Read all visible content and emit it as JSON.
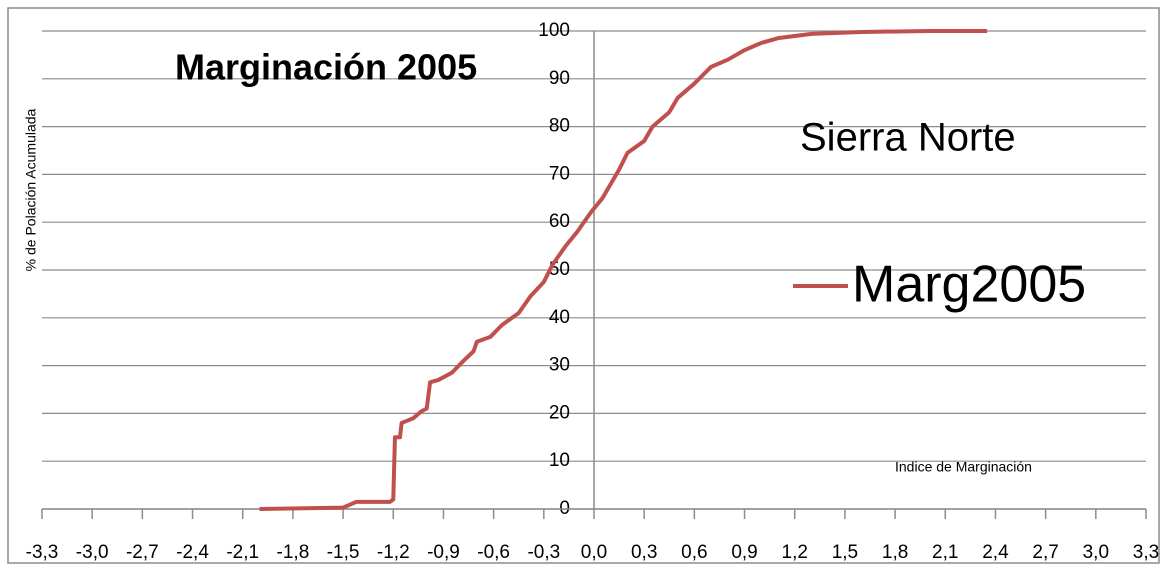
{
  "chart_data": {
    "type": "line",
    "title": "Marginación 2005",
    "annotation": "Sierra Norte",
    "x_label": "Indice de Marginación",
    "y_label": "% de Polación Acumulada",
    "xlim": [
      -3.3,
      3.3
    ],
    "ylim": [
      0,
      100
    ],
    "xticks": [
      {
        "value": -3.3,
        "label": "-3,3"
      },
      {
        "value": -3.0,
        "label": "-3,0"
      },
      {
        "value": -2.7,
        "label": "-2,7"
      },
      {
        "value": -2.4,
        "label": "-2,4"
      },
      {
        "value": -2.1,
        "label": "-2,1"
      },
      {
        "value": -1.8,
        "label": "-1,8"
      },
      {
        "value": -1.5,
        "label": "-1,5"
      },
      {
        "value": -1.2,
        "label": "-1,2"
      },
      {
        "value": -0.9,
        "label": "-0,9"
      },
      {
        "value": -0.6,
        "label": "-0,6"
      },
      {
        "value": -0.3,
        "label": "-0,3"
      },
      {
        "value": 0.0,
        "label": "0,0"
      },
      {
        "value": 0.3,
        "label": "0,3"
      },
      {
        "value": 0.6,
        "label": "0,6"
      },
      {
        "value": 0.9,
        "label": "0,9"
      },
      {
        "value": 1.2,
        "label": "1,2"
      },
      {
        "value": 1.5,
        "label": "1,5"
      },
      {
        "value": 1.8,
        "label": "1,8"
      },
      {
        "value": 2.1,
        "label": "2,1"
      },
      {
        "value": 2.4,
        "label": "2,4"
      },
      {
        "value": 2.7,
        "label": "2,7"
      },
      {
        "value": 3.0,
        "label": "3,0"
      },
      {
        "value": 3.3,
        "label": "3,3"
      }
    ],
    "yticks": [
      0,
      10,
      20,
      30,
      40,
      50,
      60,
      70,
      80,
      90,
      100
    ],
    "grid": true,
    "legend": "right",
    "x": [
      -2.0,
      -1.5,
      -1.42,
      -1.22,
      -1.2,
      -1.19,
      -1.16,
      -1.15,
      -1.08,
      -1.03,
      -1.0,
      -0.98,
      -0.93,
      -0.85,
      -0.78,
      -0.72,
      -0.7,
      -0.62,
      -0.55,
      -0.45,
      -0.38,
      -0.3,
      -0.25,
      -0.17,
      -0.1,
      -0.02,
      0.05,
      0.1,
      0.15,
      0.2,
      0.3,
      0.35,
      0.45,
      0.5,
      0.6,
      0.7,
      0.8,
      0.9,
      1.0,
      1.1,
      1.3,
      1.6,
      2.0,
      2.35
    ],
    "series": [
      {
        "name": "Marg2005",
        "color": "#c0504d",
        "values": [
          0,
          0.3,
          1.5,
          1.5,
          2,
          15,
          15,
          18,
          19,
          20.5,
          21,
          26.5,
          27,
          28.5,
          31,
          33,
          35,
          36,
          38.5,
          41,
          44.5,
          47.5,
          51,
          55,
          58,
          62,
          65,
          68,
          71,
          74.5,
          77,
          80,
          83,
          86,
          89,
          92.5,
          94,
          96,
          97.5,
          98.5,
          99.4,
          99.8,
          100,
          100
        ]
      }
    ]
  }
}
